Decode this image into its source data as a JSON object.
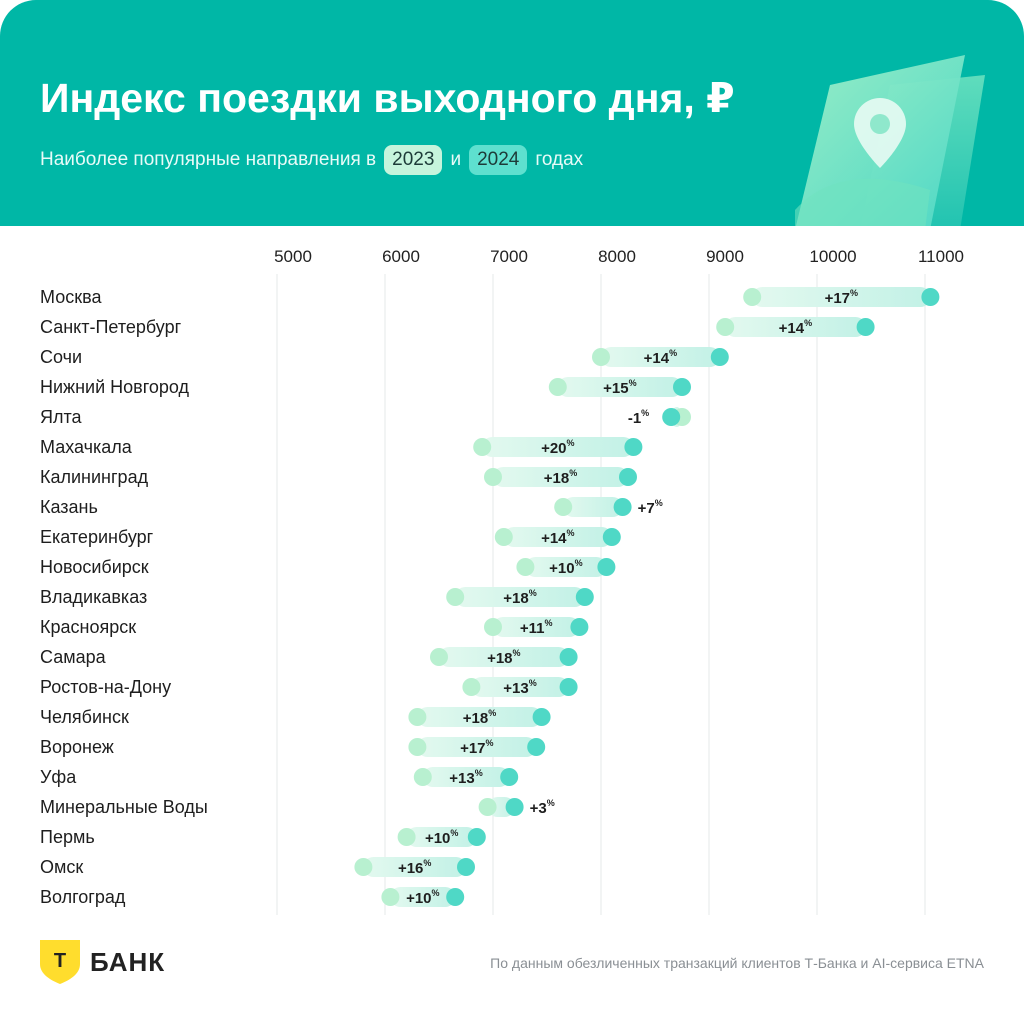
{
  "title": "Индекс поездки выходного дня, ₽",
  "subtitle": {
    "prefix": "Наиболее популярные направления в",
    "year_a": "2023",
    "middle": "и",
    "year_b": "2024",
    "suffix": "годах"
  },
  "colors": {
    "header": "#00b7a6",
    "dot_2023": "#b8f0d0",
    "dot_2024": "#4fd8c6",
    "bar_light": "#e3f9ef",
    "bar_dark": "#c2f1e6",
    "grid": "#e6e8ea",
    "shield": "#ffdd2d"
  },
  "brand": {
    "logo_letter": "Т",
    "name": "БАНК"
  },
  "footnote": "По данным обезличенных транзакций клиентов Т-Банка и AI-сервиса ETNA",
  "chart_data": {
    "type": "dumbbell",
    "x_ticks": [
      5000,
      6000,
      7000,
      8000,
      9000,
      10000,
      11000
    ],
    "xlim": [
      5000,
      11000
    ],
    "grid": "vertical",
    "percent_sign": "%",
    "series_names": [
      "2023",
      "2024"
    ],
    "rows": [
      {
        "city": "Москва",
        "v2023": 9400,
        "v2024": 11050,
        "change": "+17"
      },
      {
        "city": "Санкт-Петербург",
        "v2023": 9150,
        "v2024": 10450,
        "change": "+14"
      },
      {
        "city": "Сочи",
        "v2023": 8000,
        "v2024": 9100,
        "change": "+14"
      },
      {
        "city": "Нижний Новгород",
        "v2023": 7600,
        "v2024": 8750,
        "change": "+15"
      },
      {
        "city": "Ялта",
        "v2023": 8750,
        "v2024": 8650,
        "change": "-1"
      },
      {
        "city": "Махачкала",
        "v2023": 6900,
        "v2024": 8300,
        "change": "+20"
      },
      {
        "city": "Калининград",
        "v2023": 7000,
        "v2024": 8250,
        "change": "+18"
      },
      {
        "city": "Казань",
        "v2023": 7650,
        "v2024": 8200,
        "change": "+7"
      },
      {
        "city": "Екатеринбург",
        "v2023": 7100,
        "v2024": 8100,
        "change": "+14"
      },
      {
        "city": "Новосибирск",
        "v2023": 7300,
        "v2024": 8050,
        "change": "+10"
      },
      {
        "city": "Владикавказ",
        "v2023": 6650,
        "v2024": 7850,
        "change": "+18"
      },
      {
        "city": "Красноярск",
        "v2023": 7000,
        "v2024": 7800,
        "change": "+11"
      },
      {
        "city": "Самара",
        "v2023": 6500,
        "v2024": 7700,
        "change": "+18"
      },
      {
        "city": "Ростов-на-Дону",
        "v2023": 6800,
        "v2024": 7700,
        "change": "+13"
      },
      {
        "city": "Челябинск",
        "v2023": 6300,
        "v2024": 7450,
        "change": "+18"
      },
      {
        "city": "Воронеж",
        "v2023": 6300,
        "v2024": 7400,
        "change": "+17"
      },
      {
        "city": "Уфа",
        "v2023": 6350,
        "v2024": 7150,
        "change": "+13"
      },
      {
        "city": "Минеральные Воды",
        "v2023": 6950,
        "v2024": 7200,
        "change": "+3"
      },
      {
        "city": "Пермь",
        "v2023": 6200,
        "v2024": 6850,
        "change": "+10"
      },
      {
        "city": "Омск",
        "v2023": 5800,
        "v2024": 6750,
        "change": "+16"
      },
      {
        "city": "Волгоград",
        "v2023": 6050,
        "v2024": 6650,
        "change": "+10"
      }
    ]
  }
}
